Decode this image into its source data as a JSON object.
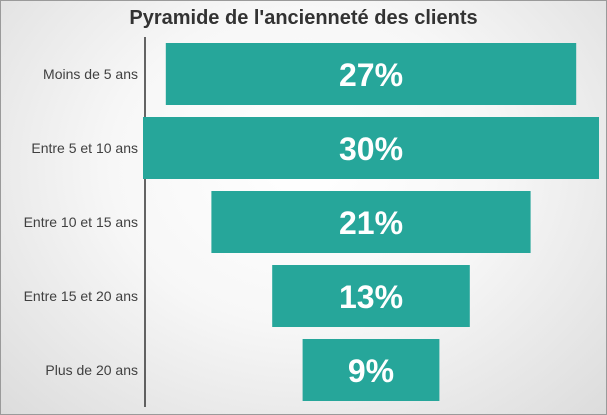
{
  "chart_data": {
    "type": "bar",
    "orientation": "horizontal-centered",
    "title": "Pyramide de l'ancienneté des clients",
    "categories": [
      "Moins de 5 ans",
      "Entre 5 et 10 ans",
      "Entre 10 et 15 ans",
      "Entre 15 et 20 ans",
      "Plus de 20 ans"
    ],
    "values": [
      27,
      30,
      21,
      13,
      9
    ],
    "value_labels": [
      "27%",
      "30%",
      "21%",
      "13%",
      "9%"
    ],
    "xlim": [
      0,
      30
    ],
    "grid": false,
    "legend": "none",
    "bar_color": "#26a69a",
    "label_color": "#ffffff"
  }
}
